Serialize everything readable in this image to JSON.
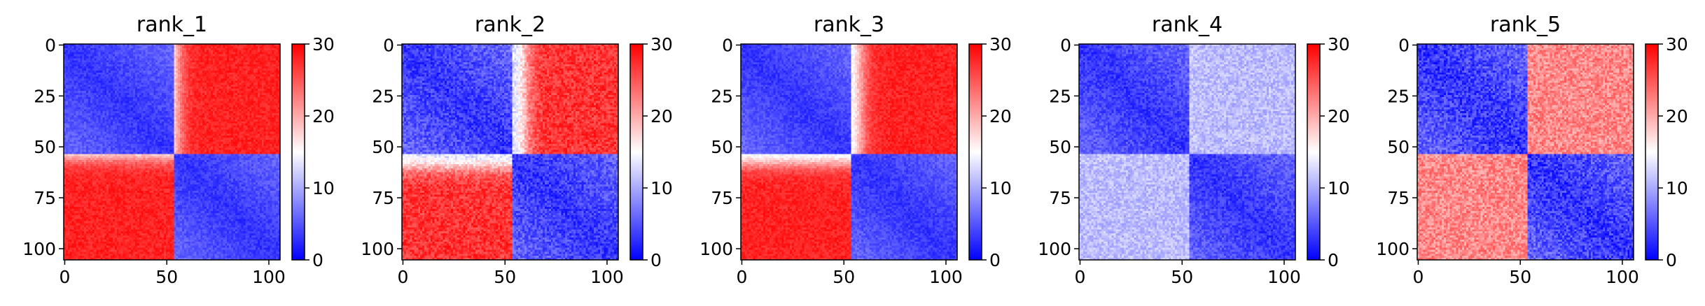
{
  "colors": {
    "low": "#0000ff",
    "mid": "#ffffff",
    "high": "#ff0000"
  },
  "chart_data": [
    {
      "type": "heatmap",
      "title": "rank_1",
      "size": 106,
      "x_ticks": [
        "0",
        "50",
        "100"
      ],
      "y_ticks": [
        "0",
        "25",
        "50",
        "75",
        "100"
      ],
      "colorbar": {
        "min": 0,
        "max": 30,
        "ticks": [
          "0",
          "10",
          "20",
          "30"
        ],
        "cmap": "bwr"
      },
      "pattern": {
        "split": 54,
        "low": 3,
        "high": 28,
        "boundary": 55,
        "noise": 1.5
      }
    },
    {
      "type": "heatmap",
      "title": "rank_2",
      "size": 106,
      "x_ticks": [
        "0",
        "50",
        "100"
      ],
      "y_ticks": [
        "0",
        "25",
        "50",
        "75",
        "100"
      ],
      "colorbar": {
        "min": 0,
        "max": 30,
        "ticks": [
          "0",
          "10",
          "20",
          "30"
        ],
        "cmap": "bwr"
      },
      "pattern": {
        "split": 54,
        "low": 3,
        "high": 27,
        "boundary": 60,
        "noise": 2.5
      }
    },
    {
      "type": "heatmap",
      "title": "rank_3",
      "size": 106,
      "x_ticks": [
        "0",
        "50",
        "100"
      ],
      "y_ticks": [
        "0",
        "25",
        "50",
        "75",
        "100"
      ],
      "colorbar": {
        "min": 0,
        "max": 30,
        "ticks": [
          "0",
          "10",
          "20",
          "30"
        ],
        "cmap": "bwr"
      },
      "pattern": {
        "split": 54,
        "low": 3,
        "high": 28,
        "boundary": 58,
        "noise": 1.5
      }
    },
    {
      "type": "heatmap",
      "title": "rank_4",
      "size": 106,
      "x_ticks": [
        "0",
        "50",
        "100"
      ],
      "y_ticks": [
        "0",
        "25",
        "50",
        "75",
        "100"
      ],
      "colorbar": {
        "min": 0,
        "max": 30,
        "ticks": [
          "0",
          "10",
          "20",
          "30"
        ],
        "cmap": "bwr"
      },
      "pattern": {
        "split": 54,
        "low": 3,
        "high": 11,
        "boundary": 55,
        "noise": 2.0
      }
    },
    {
      "type": "heatmap",
      "title": "rank_5",
      "size": 106,
      "x_ticks": [
        "0",
        "50",
        "100"
      ],
      "y_ticks": [
        "0",
        "25",
        "50",
        "75",
        "100"
      ],
      "colorbar": {
        "min": 0,
        "max": 30,
        "ticks": [
          "0",
          "10",
          "20",
          "30"
        ],
        "cmap": "bwr"
      },
      "pattern": {
        "split": 54,
        "low": 3,
        "high": 22,
        "boundary": 45,
        "noise": 3.0
      }
    }
  ]
}
